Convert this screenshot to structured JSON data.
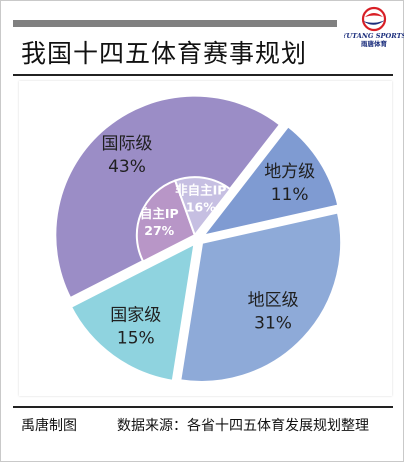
{
  "title": "我国十四五体育赛事规划",
  "brand": {
    "name": "YUTANG SPORTS",
    "subname": "雨唐体育"
  },
  "footer": {
    "credit": "禹唐制图",
    "source": "数据来源：各省十四五体育发展规划整理"
  },
  "colors": {
    "national": "#8fd3df",
    "international": "#9b8dc6",
    "provincial": "#7f9bd2",
    "regional": "#8eaad8",
    "own_ip": "#b896c7",
    "non_own_ip": "#c6bfe2",
    "logo_red": "#d81f26",
    "logo_blue": "#1a2d7c"
  },
  "chart_data": {
    "type": "pie",
    "title": "我国十四五体育赛事规划",
    "slices": [
      {
        "label": "国家级",
        "value": 15
      },
      {
        "label": "国际级",
        "value": 43
      },
      {
        "label": "地方级",
        "value": 11
      },
      {
        "label": "地区级",
        "value": 31
      }
    ],
    "inner_ring": {
      "parent": "国际级",
      "slices": [
        {
          "label": "自主IP",
          "value": 27
        },
        {
          "label": "非自主IP",
          "value": 16
        }
      ]
    }
  }
}
